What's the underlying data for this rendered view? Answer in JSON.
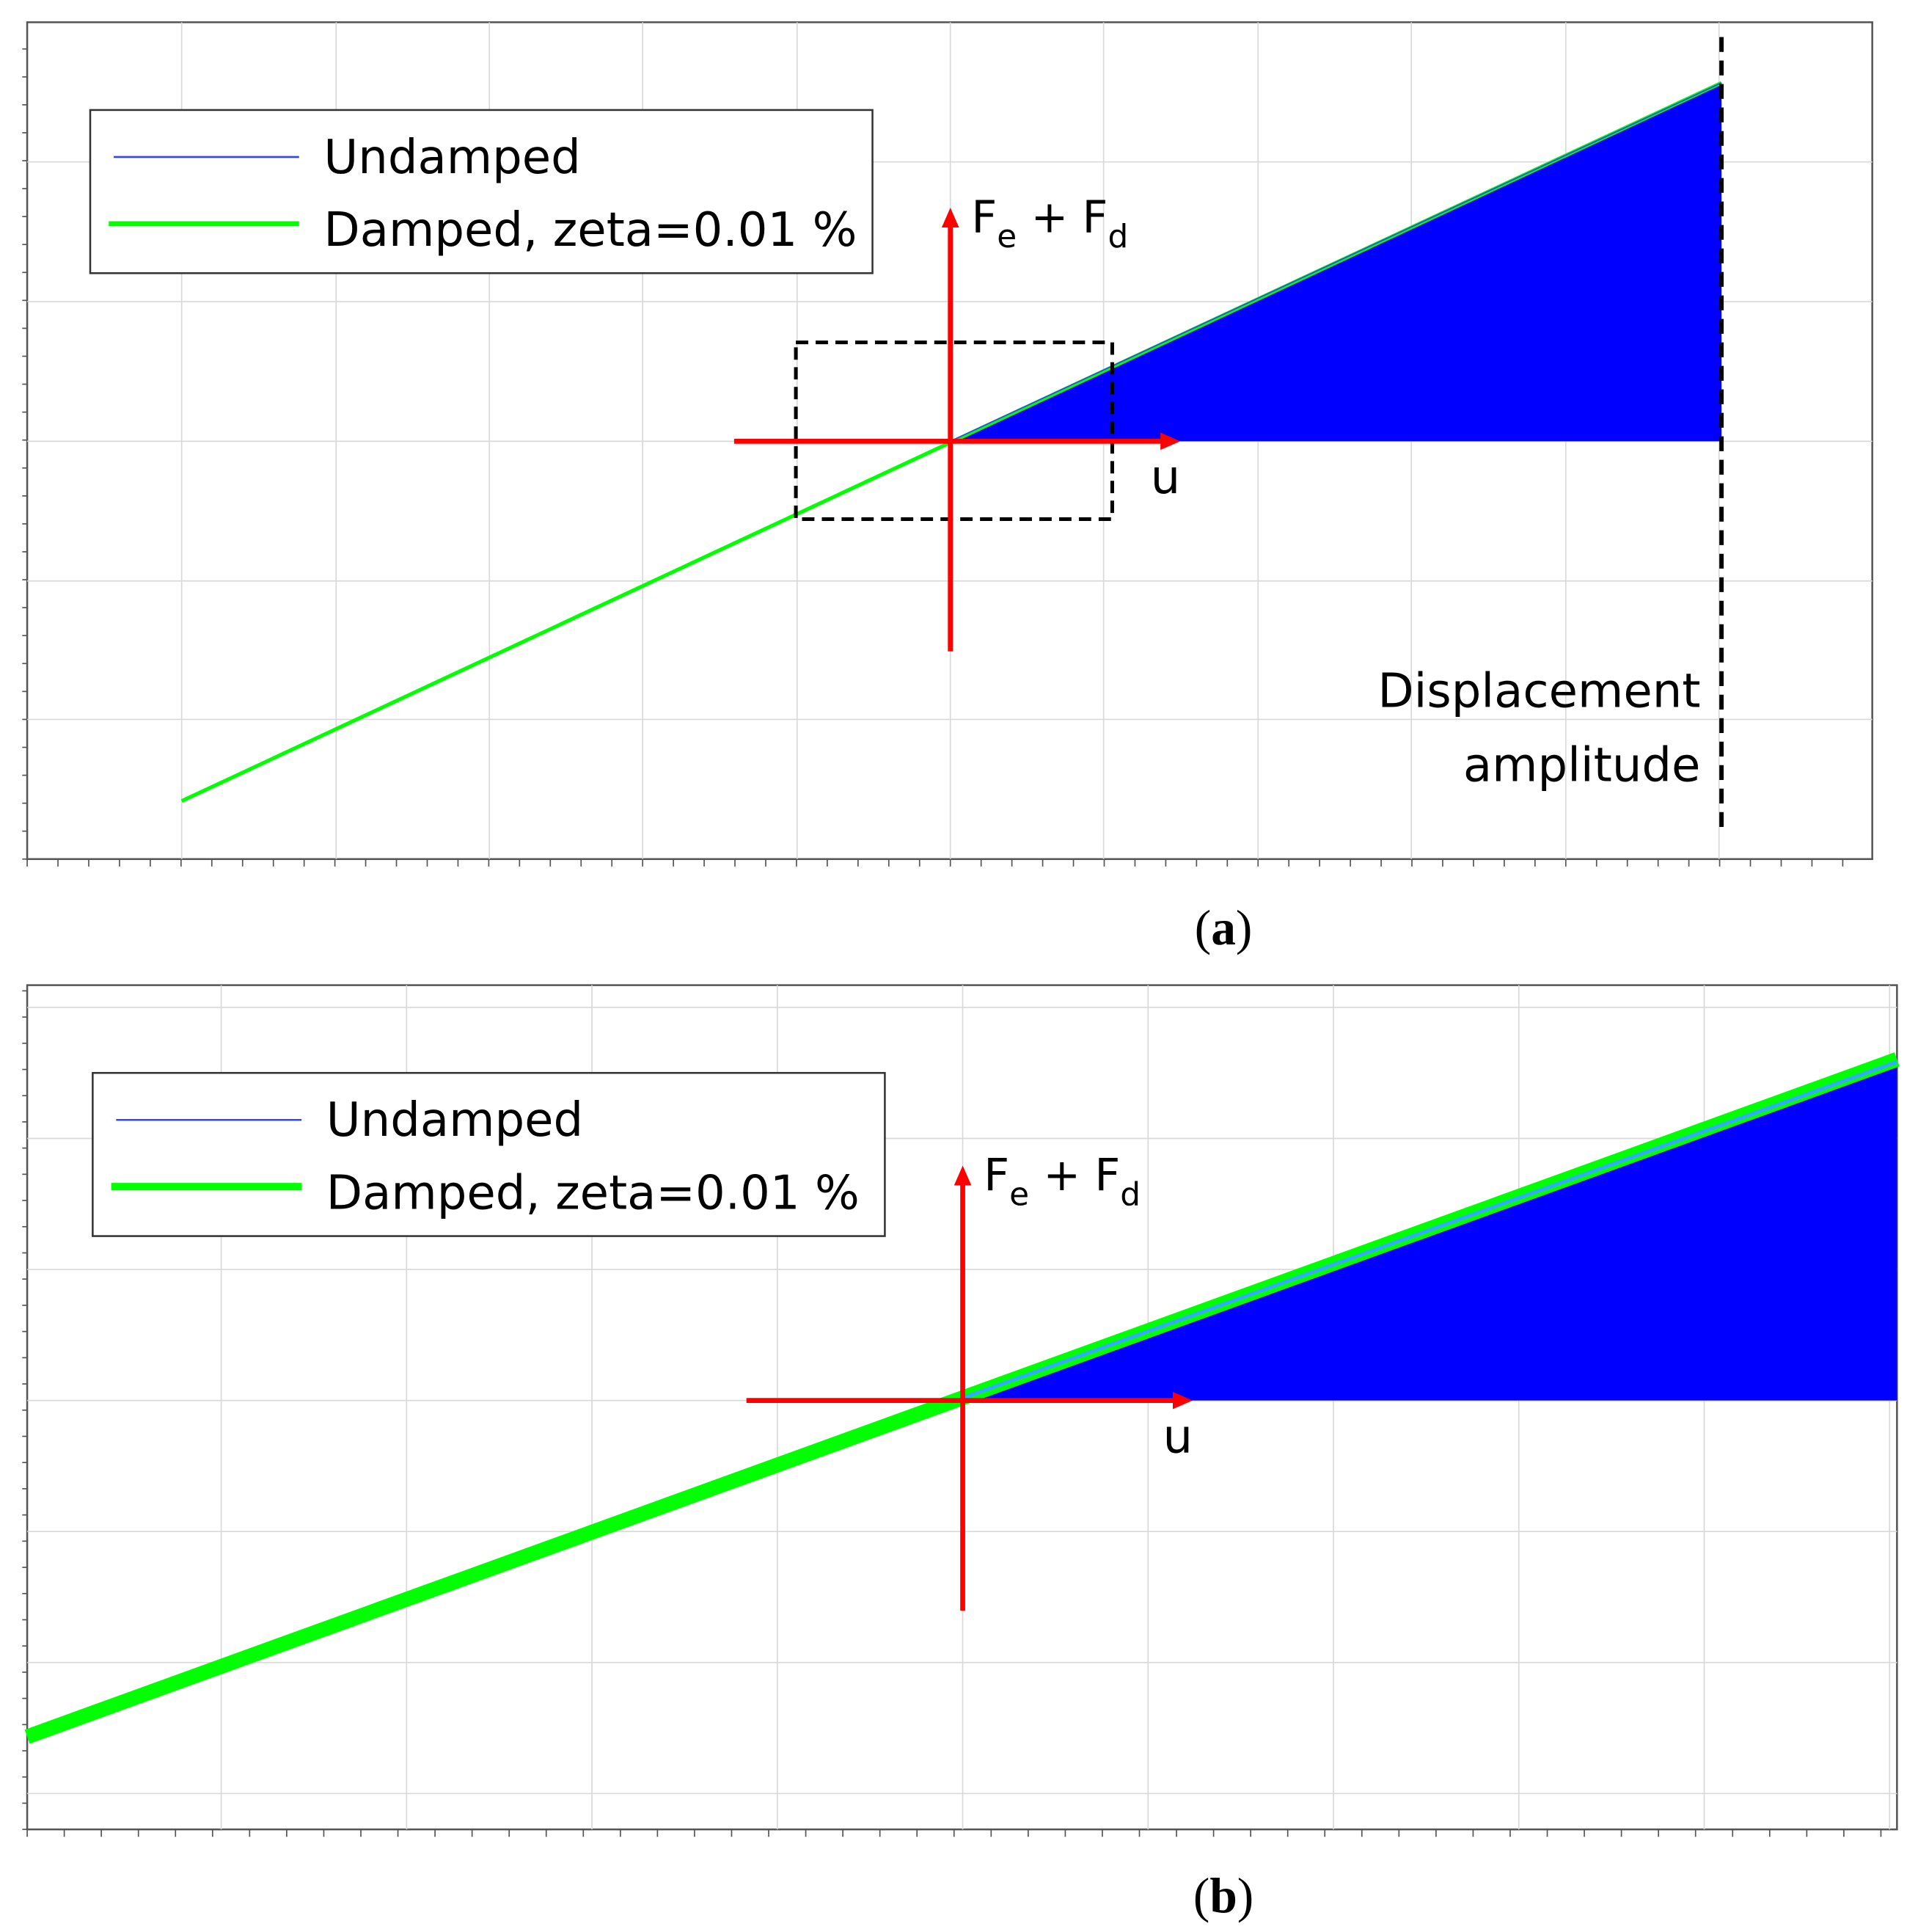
{
  "panels": [
    {
      "legend": [
        "Undamped",
        "Damped, zeta=0.01 %"
      ],
      "force_label": [
        "F",
        "e",
        " + F",
        "d"
      ],
      "u_label": "u",
      "annotation": [
        "Displacement",
        "amplitude"
      ],
      "caption": [
        "(",
        "a",
        ")"
      ]
    },
    {
      "legend": [
        "Undamped",
        "Damped, zeta=0.01 %"
      ],
      "force_label": [
        "F",
        "e",
        " + F",
        "d"
      ],
      "u_label": "u",
      "caption": [
        "(",
        "b",
        ")"
      ]
    }
  ]
}
